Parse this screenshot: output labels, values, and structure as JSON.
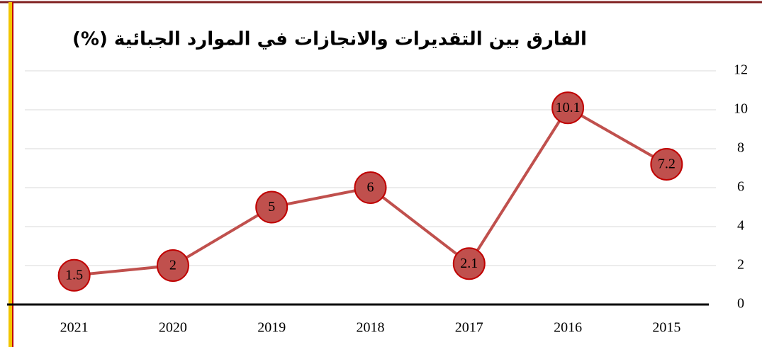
{
  "chart_data": {
    "type": "line",
    "title": "الفارق بين التقديرات والانجازات في الموارد الجبائية (%)",
    "categories": [
      "2021",
      "2020",
      "2019",
      "2018",
      "2017",
      "2016",
      "2015"
    ],
    "series": [
      {
        "name": null,
        "color": "#c0504d",
        "values": [
          1.5,
          2,
          5,
          6,
          2.1,
          10.1,
          7.2
        ]
      }
    ],
    "ylim": [
      0,
      12
    ],
    "yticks": [
      0,
      2,
      4,
      6,
      8,
      10,
      12
    ],
    "grid": true,
    "y_axis_side": "right"
  }
}
